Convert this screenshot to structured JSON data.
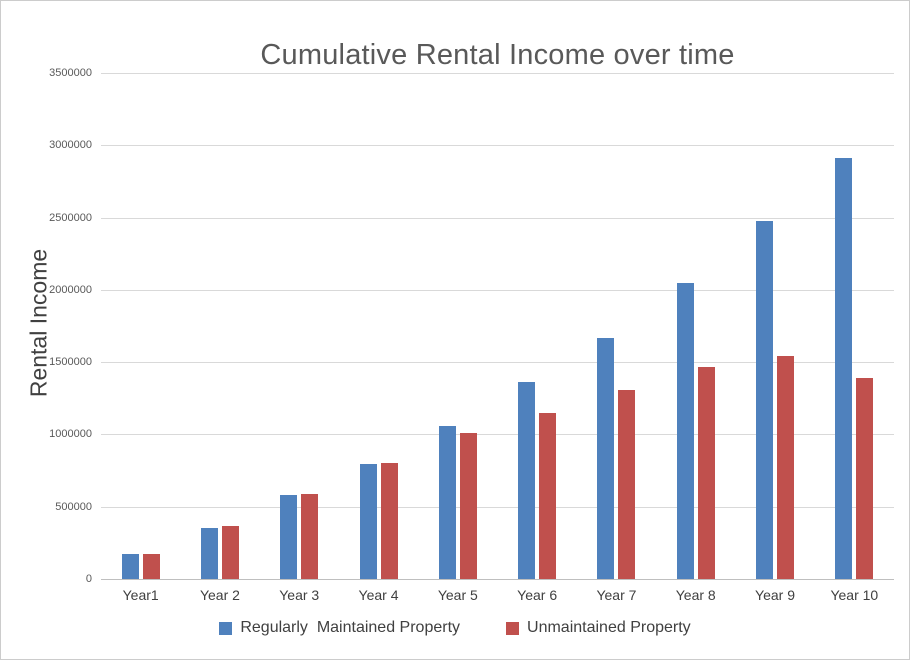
{
  "window": {
    "background": "#ffffff",
    "border_color": "#cccccc"
  },
  "colors": {
    "maintained_blue": "#4f81bd",
    "unmaintained_red": "#c0504d",
    "title_gray": "#595959",
    "gridline_gray": "#d9d9d9"
  },
  "chart_data": {
    "type": "bar",
    "title": "Cumulative Rental Income over time",
    "ylabel": "Rental Income",
    "xlabel": "",
    "categories": [
      "Year1",
      "Year 2",
      "Year 3",
      "Year 4",
      "Year 5",
      "Year 6",
      "Year 7",
      "Year 8",
      "Year 9",
      "Year 10"
    ],
    "series": [
      {
        "name": "Regularly  Maintained Property",
        "color": "#4f81bd",
        "values": [
          170000,
          355000,
          580000,
          795000,
          1055000,
          1360000,
          1665000,
          2045000,
          2475000,
          2915000
        ]
      },
      {
        "name": "Unmaintained Property",
        "color": "#c0504d",
        "values": [
          170000,
          365000,
          585000,
          800000,
          1010000,
          1150000,
          1310000,
          1465000,
          1540000,
          1390000
        ]
      }
    ],
    "ylim": [
      0,
      3500000
    ],
    "ytick_step": 500000,
    "ytick_labels": [
      "0",
      "500000",
      "1000000",
      "1500000",
      "2000000",
      "2500000",
      "3000000",
      "3500000"
    ],
    "grid": true,
    "legend_position": "bottom"
  }
}
